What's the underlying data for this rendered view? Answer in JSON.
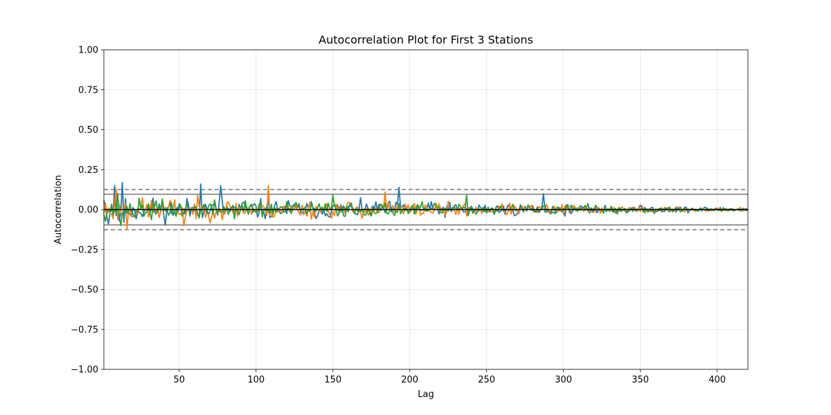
{
  "chart_data": {
    "type": "line",
    "title": "Autocorrelation Plot for First 3 Stations",
    "xlabel": "Lag",
    "ylabel": "Autocorrelation",
    "xlim": [
      1,
      420
    ],
    "ylim": [
      -1.0,
      1.0
    ],
    "x_ticks": [
      50,
      100,
      150,
      200,
      250,
      300,
      350,
      400
    ],
    "x_tick_labels": [
      "50",
      "100",
      "150",
      "200",
      "250",
      "300",
      "350",
      "400"
    ],
    "y_ticks": [
      -1.0,
      -0.75,
      -0.5,
      -0.25,
      0.0,
      0.25,
      0.5,
      0.75,
      1.0
    ],
    "y_tick_labels": [
      "−1.00",
      "−0.75",
      "−0.50",
      "−0.25",
      "0.00",
      "0.25",
      "0.50",
      "0.75",
      "1.00"
    ],
    "grid": true,
    "legend": "none",
    "confidence_bands": {
      "z95": 0.096,
      "z99": 0.126,
      "z95_style": "solid",
      "z99_style": "dashed",
      "color": "#808080"
    },
    "zero_line_color": "#000000",
    "series": [
      {
        "color": "#1f77b4",
        "seed": 11,
        "amplitude_start": 0.09,
        "amplitude_end": 0.015,
        "points": [
          {
            "x": 1,
            "y": 0.06
          },
          {
            "x": 4,
            "y": -0.09
          },
          {
            "x": 8,
            "y": 0.15
          },
          {
            "x": 11,
            "y": -0.07
          },
          {
            "x": 13,
            "y": 0.17
          },
          {
            "x": 14,
            "y": -0.08
          },
          {
            "x": 64,
            "y": 0.16
          },
          {
            "x": 65,
            "y": -0.05
          },
          {
            "x": 77,
            "y": 0.15
          },
          {
            "x": 193,
            "y": 0.14
          },
          {
            "x": 287,
            "y": 0.1
          },
          {
            "x": 420,
            "y": 0.0
          }
        ]
      },
      {
        "color": "#ff7f0e",
        "seed": 23,
        "amplitude_start": 0.085,
        "amplitude_end": 0.015,
        "points": [
          {
            "x": 9,
            "y": 0.13
          },
          {
            "x": 16,
            "y": -0.12
          },
          {
            "x": 53,
            "y": -0.1
          },
          {
            "x": 108,
            "y": 0.15
          },
          {
            "x": 184,
            "y": 0.11
          },
          {
            "x": 420,
            "y": 0.0
          }
        ]
      },
      {
        "color": "#2ca02c",
        "seed": 37,
        "amplitude_start": 0.075,
        "amplitude_end": 0.012,
        "points": [
          {
            "x": 10,
            "y": 0.1
          },
          {
            "x": 12,
            "y": -0.1
          },
          {
            "x": 150,
            "y": 0.09
          },
          {
            "x": 237,
            "y": 0.09
          },
          {
            "x": 420,
            "y": 0.0
          }
        ]
      }
    ]
  }
}
